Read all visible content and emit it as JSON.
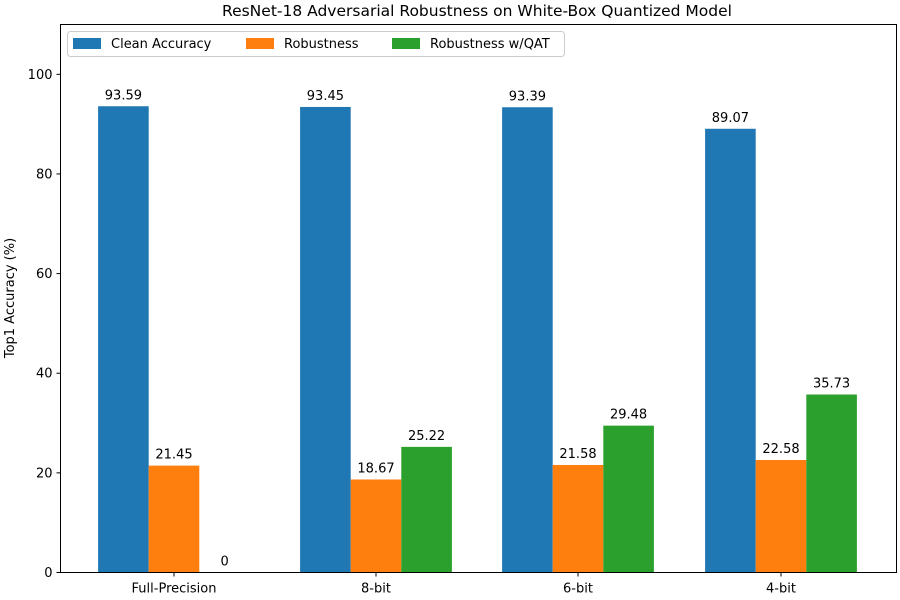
{
  "chart_data": {
    "type": "bar",
    "title": "ResNet-18 Adversarial Robustness on White-Box Quantized Model",
    "xlabel": "",
    "ylabel": "Top1 Accuracy (%)",
    "ylim": [
      0,
      110
    ],
    "yticks": [
      0,
      20,
      40,
      60,
      80,
      100
    ],
    "categories": [
      "Full-Precision",
      "8-bit",
      "6-bit",
      "4-bit"
    ],
    "series": [
      {
        "name": "Clean Accuracy",
        "color": "#1f77b4",
        "values": [
          93.59,
          93.45,
          93.39,
          89.07
        ],
        "labels": [
          "93.59",
          "93.45",
          "93.39",
          "89.07"
        ]
      },
      {
        "name": "Robustness",
        "color": "#ff7f0e",
        "values": [
          21.45,
          18.67,
          21.58,
          22.58
        ],
        "labels": [
          "21.45",
          "18.67",
          "21.58",
          "22.58"
        ]
      },
      {
        "name": "Robustness w/QAT",
        "color": "#2ca02c",
        "values": [
          0,
          25.22,
          29.48,
          35.73
        ],
        "labels": [
          "0",
          "25.22",
          "29.48",
          "35.73"
        ]
      }
    ],
    "legend": {
      "location": "top-left",
      "columns": 3
    },
    "grid": false
  }
}
